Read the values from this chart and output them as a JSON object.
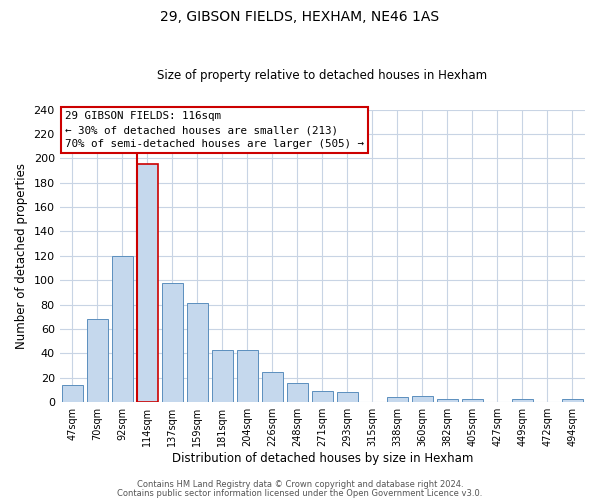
{
  "title": "29, GIBSON FIELDS, HEXHAM, NE46 1AS",
  "subtitle": "Size of property relative to detached houses in Hexham",
  "xlabel": "Distribution of detached houses by size in Hexham",
  "ylabel": "Number of detached properties",
  "bar_labels": [
    "47sqm",
    "70sqm",
    "92sqm",
    "114sqm",
    "137sqm",
    "159sqm",
    "181sqm",
    "204sqm",
    "226sqm",
    "248sqm",
    "271sqm",
    "293sqm",
    "315sqm",
    "338sqm",
    "360sqm",
    "382sqm",
    "405sqm",
    "427sqm",
    "449sqm",
    "472sqm",
    "494sqm"
  ],
  "bar_values": [
    14,
    68,
    120,
    195,
    98,
    81,
    43,
    43,
    25,
    16,
    9,
    8,
    0,
    4,
    5,
    3,
    3,
    0,
    3,
    0,
    3
  ],
  "bar_color": "#c5d8ed",
  "bar_edge_color": "#5b8fbe",
  "highlight_bar_index": 3,
  "highlight_color": "#cc0000",
  "ylim": [
    0,
    240
  ],
  "yticks": [
    0,
    20,
    40,
    60,
    80,
    100,
    120,
    140,
    160,
    180,
    200,
    220,
    240
  ],
  "annotation_title": "29 GIBSON FIELDS: 116sqm",
  "annotation_line1": "← 30% of detached houses are smaller (213)",
  "annotation_line2": "70% of semi-detached houses are larger (505) →",
  "annotation_box_color": "#ffffff",
  "annotation_box_edge": "#cc0000",
  "footer1": "Contains HM Land Registry data © Crown copyright and database right 2024.",
  "footer2": "Contains public sector information licensed under the Open Government Licence v3.0.",
  "background_color": "#ffffff",
  "grid_color": "#c8d4e4",
  "title_fontsize": 10,
  "subtitle_fontsize": 8.5,
  "xlabel_fontsize": 8.5,
  "ylabel_fontsize": 8.5
}
